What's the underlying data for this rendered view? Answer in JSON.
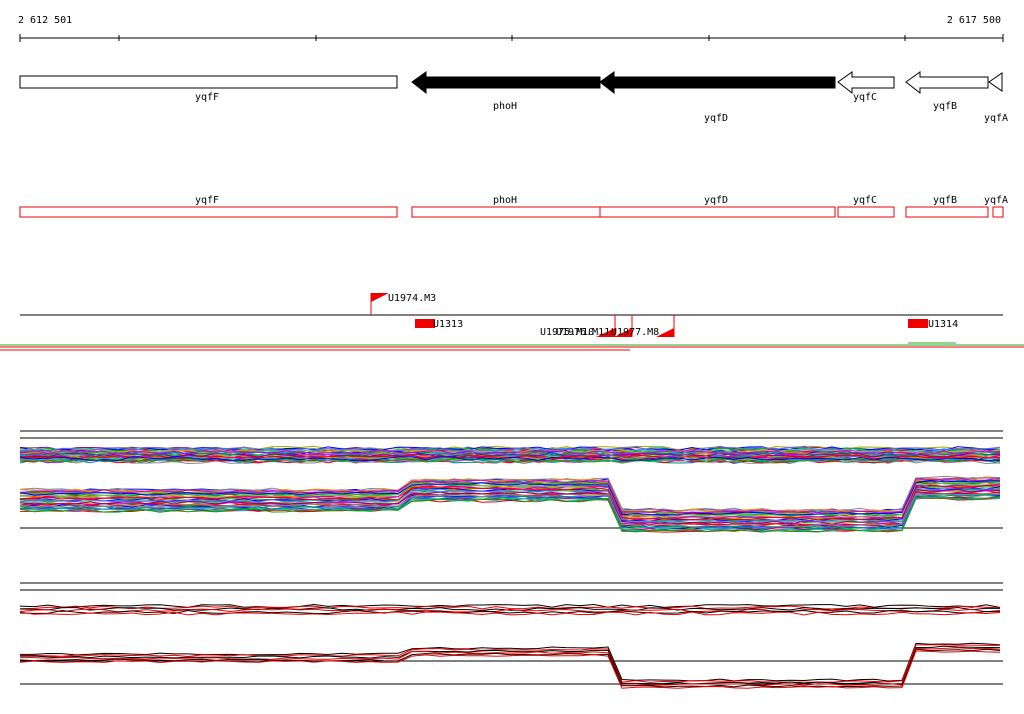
{
  "ruler": {
    "start": "2 612 501",
    "end": "2 617 500"
  },
  "genes": [
    "yqfF",
    "phoH",
    "yqfD",
    "yqfC",
    "yqfB",
    "yqfA"
  ],
  "transcripts": [
    "yqfF",
    "phoH",
    "yqfD",
    "yqfC",
    "yqfB",
    "yqfA"
  ],
  "sites": [
    "U1974.M3",
    "U1313",
    "U1975.M10",
    "U1976.M11",
    "U1977.M8",
    "U1314"
  ]
}
